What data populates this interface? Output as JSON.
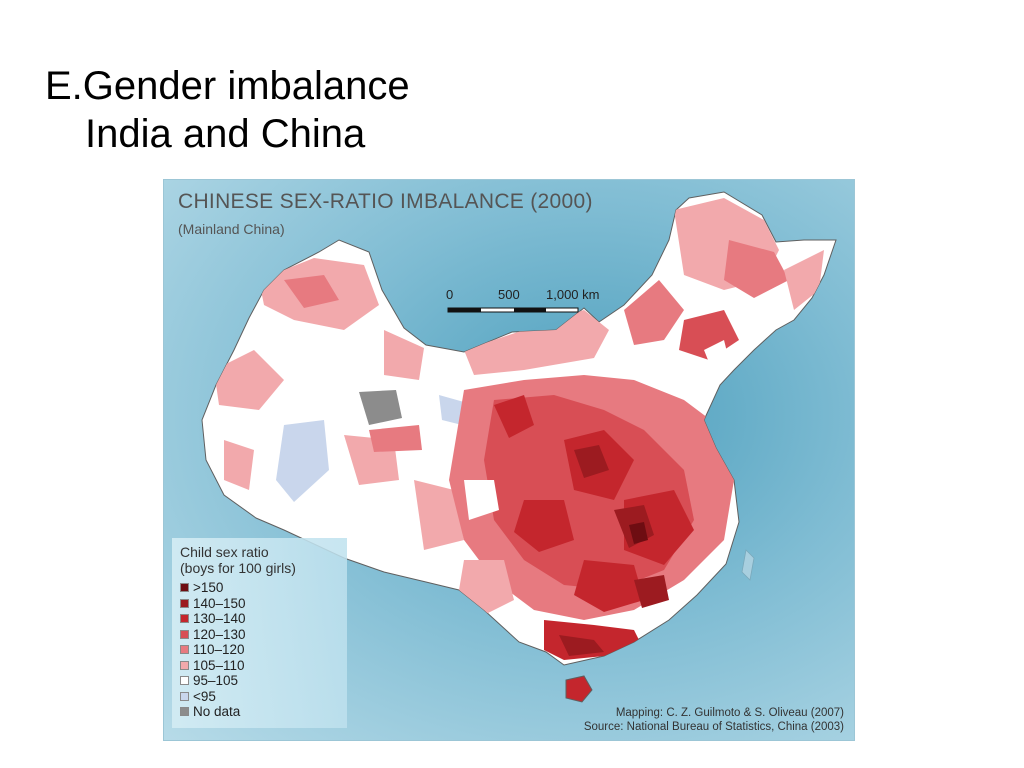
{
  "slide": {
    "title_line1": "E.Gender imbalance",
    "title_line2": "India and China"
  },
  "map": {
    "title": "CHINESE SEX-RATIO IMBALANCE (2000)",
    "subtitle": "(Mainland China)",
    "scale_bar": {
      "labels": [
        "0",
        "500",
        "1,000 km"
      ]
    },
    "legend": {
      "title_line1": "Child sex ratio",
      "title_line2": "(boys for 100 girls)",
      "items": [
        {
          "label": ">150",
          "color": "#6e0d12"
        },
        {
          "label": "140–150",
          "color": "#9c1b20"
        },
        {
          "label": "130–140",
          "color": "#c4262d"
        },
        {
          "label": "120–130",
          "color": "#d84e55"
        },
        {
          "label": "110–120",
          "color": "#e77a80"
        },
        {
          "label": "105–110",
          "color": "#f2a9ac"
        },
        {
          "label": "95–105",
          "color": "#ffffff"
        },
        {
          "label": "<95",
          "color": "#c9d6ec"
        },
        {
          "label": "No data",
          "color": "#8c8c8c"
        }
      ]
    },
    "credits": {
      "mapping": "Mapping: C. Z. Guilmoto & S. Oliveau (2007)",
      "source": "Source: National Bureau of Statistics, China (2003)"
    }
  }
}
